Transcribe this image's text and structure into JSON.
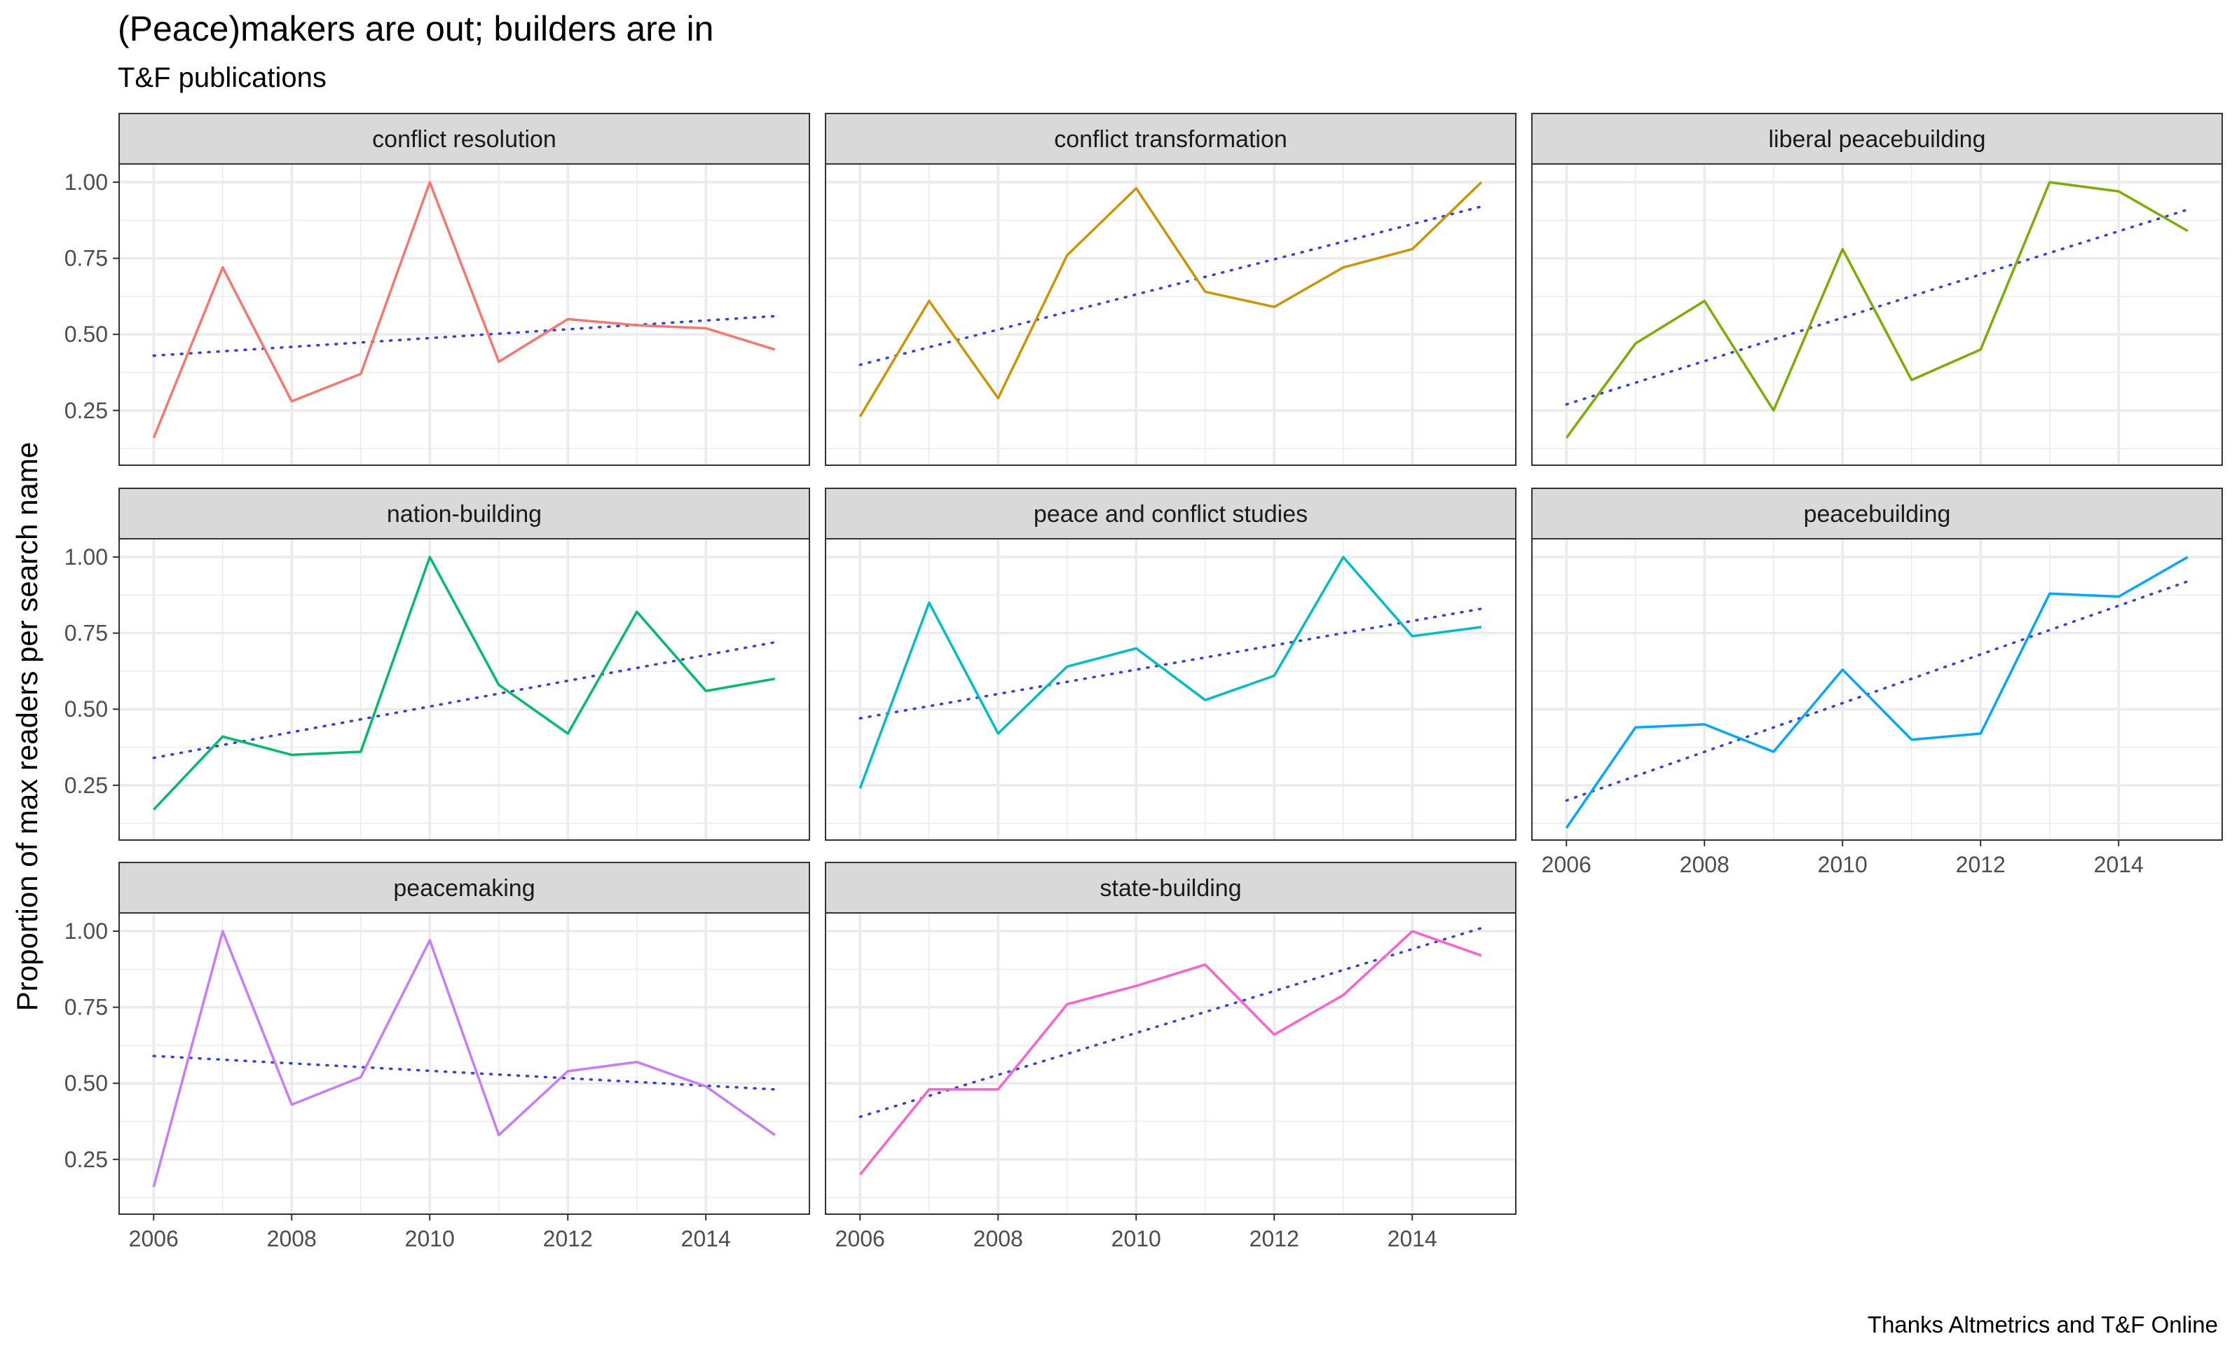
{
  "chart_data": {
    "type": "line",
    "title": "(Peace)makers are out; builders are in",
    "subtitle": "T&F publications",
    "caption": "Thanks Altmetrics and T&F Online",
    "xlabel": "",
    "ylabel": "Proportion of max readers per search name",
    "x": [
      2006,
      2007,
      2008,
      2009,
      2010,
      2011,
      2012,
      2013,
      2014,
      2015
    ],
    "xlim": [
      2005.5,
      2015.5
    ],
    "ylim": [
      0.07,
      1.06
    ],
    "x_ticks": [
      2006,
      2008,
      2010,
      2012,
      2014
    ],
    "x_tick_labels": [
      "2006",
      "2008",
      "2010",
      "2012",
      "2014"
    ],
    "y_ticks": [
      0.25,
      0.5,
      0.75,
      1.0
    ],
    "y_tick_labels": [
      "0.25",
      "0.50",
      "0.75",
      "1.00"
    ],
    "grid": true,
    "legend": "none",
    "trend_color": "#3040e8",
    "panels": [
      {
        "name": "conflict resolution",
        "color": "#F8766D",
        "values": [
          0.16,
          0.72,
          0.28,
          0.37,
          1.0,
          0.41,
          0.55,
          0.53,
          0.52,
          0.45
        ],
        "trend": [
          0.43,
          0.56
        ]
      },
      {
        "name": "conflict transformation",
        "color": "#CD9600",
        "values": [
          0.23,
          0.61,
          0.29,
          0.76,
          0.98,
          0.64,
          0.59,
          0.72,
          0.78,
          1.0
        ],
        "trend": [
          0.4,
          0.92
        ]
      },
      {
        "name": "liberal peacebuilding",
        "color": "#7CAE00",
        "values": [
          0.16,
          0.47,
          0.61,
          0.25,
          0.78,
          0.35,
          0.45,
          1.0,
          0.97,
          0.84
        ],
        "trend": [
          0.27,
          0.91
        ]
      },
      {
        "name": "nation-building",
        "color": "#00BE67",
        "values": [
          0.17,
          0.41,
          0.35,
          0.36,
          1.0,
          0.58,
          0.42,
          0.82,
          0.56,
          0.6
        ],
        "trend": [
          0.34,
          0.72
        ]
      },
      {
        "name": "peace and conflict studies",
        "color": "#00BFC4",
        "values": [
          0.24,
          0.85,
          0.42,
          0.64,
          0.7,
          0.53,
          0.61,
          1.0,
          0.74,
          0.77
        ],
        "trend": [
          0.47,
          0.83
        ]
      },
      {
        "name": "peacebuilding",
        "color": "#00A9FF",
        "values": [
          0.11,
          0.44,
          0.45,
          0.36,
          0.63,
          0.4,
          0.42,
          0.88,
          0.87,
          1.0
        ],
        "trend": [
          0.2,
          0.92
        ]
      },
      {
        "name": "peacemaking",
        "color": "#C77CFF",
        "values": [
          0.16,
          1.0,
          0.43,
          0.52,
          0.97,
          0.33,
          0.54,
          0.57,
          0.49,
          0.33
        ],
        "trend": [
          0.59,
          0.48
        ]
      },
      {
        "name": "state-building",
        "color": "#FF61CC",
        "values": [
          0.2,
          0.48,
          0.48,
          0.76,
          0.82,
          0.89,
          0.66,
          0.79,
          1.0,
          0.92
        ],
        "trend": [
          0.39,
          1.01
        ]
      }
    ]
  }
}
